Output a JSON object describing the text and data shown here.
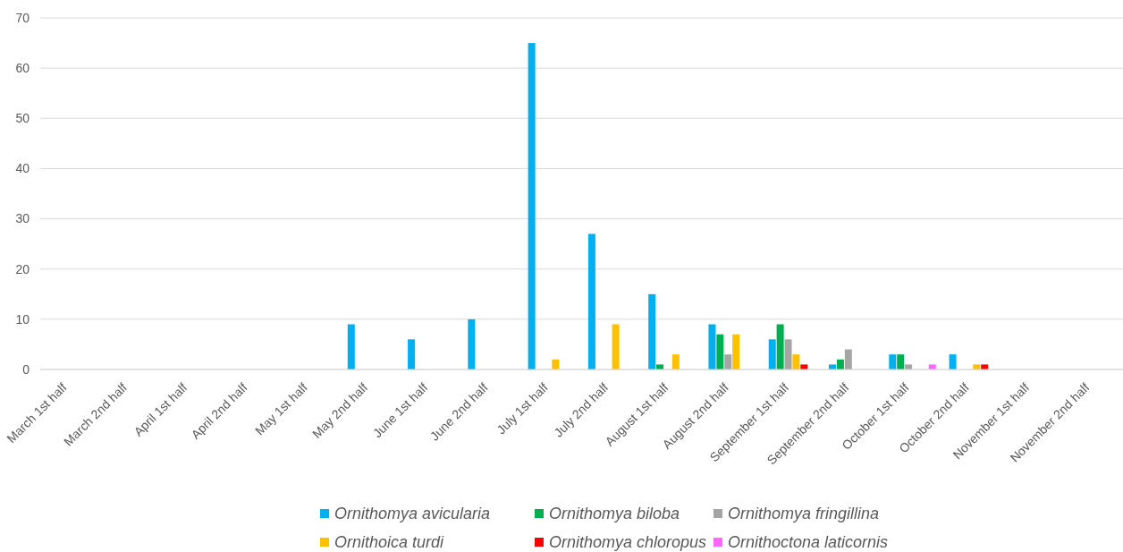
{
  "chart_data": {
    "type": "bar",
    "categories": [
      "March 1st half",
      "March 2nd half",
      "April 1st half",
      "April 2nd half",
      "May 1st half",
      "May 2nd half",
      "June 1st half",
      "June 2nd half",
      "July 1st half",
      "July 2nd half",
      "August 1st half",
      "August 2nd half",
      "September 1st half",
      "September 2nd half",
      "October 1st half",
      "October 2nd half",
      "November 1st half",
      "November 2nd half"
    ],
    "series": [
      {
        "name": "Ornithomya avicularia",
        "color": "#00b0f0",
        "values": [
          0,
          0,
          0,
          0,
          0,
          9,
          6,
          10,
          65,
          27,
          15,
          9,
          6,
          1,
          3,
          3,
          0,
          0
        ]
      },
      {
        "name": "Ornithomya biloba",
        "color": "#00b050",
        "values": [
          0,
          0,
          0,
          0,
          0,
          0,
          0,
          0,
          0,
          0,
          1,
          7,
          9,
          2,
          3,
          0,
          0,
          0
        ]
      },
      {
        "name": "Ornithomya fringillina",
        "color": "#a5a5a5",
        "values": [
          0,
          0,
          0,
          0,
          0,
          0,
          0,
          0,
          0,
          0,
          0,
          3,
          6,
          4,
          1,
          0,
          0,
          0
        ]
      },
      {
        "name": "Ornithoica turdi",
        "color": "#ffc000",
        "values": [
          0,
          0,
          0,
          0,
          0,
          0,
          0,
          0,
          2,
          9,
          3,
          7,
          3,
          0,
          0,
          1,
          0,
          0
        ]
      },
      {
        "name": "Ornithomya chloropus",
        "color": "#ff0000",
        "values": [
          0,
          0,
          0,
          0,
          0,
          0,
          0,
          0,
          0,
          0,
          0,
          0,
          1,
          0,
          0,
          1,
          0,
          0
        ]
      },
      {
        "name": "Ornithoctona laticornis",
        "color": "#ff66ff",
        "values": [
          0,
          0,
          0,
          0,
          0,
          0,
          0,
          0,
          0,
          0,
          0,
          0,
          0,
          0,
          1,
          0,
          0,
          0
        ]
      }
    ],
    "ylim": [
      0,
      70
    ],
    "yticks": [
      0,
      10,
      20,
      30,
      40,
      50,
      60,
      70
    ],
    "grid": "y",
    "legend": "bottom"
  }
}
